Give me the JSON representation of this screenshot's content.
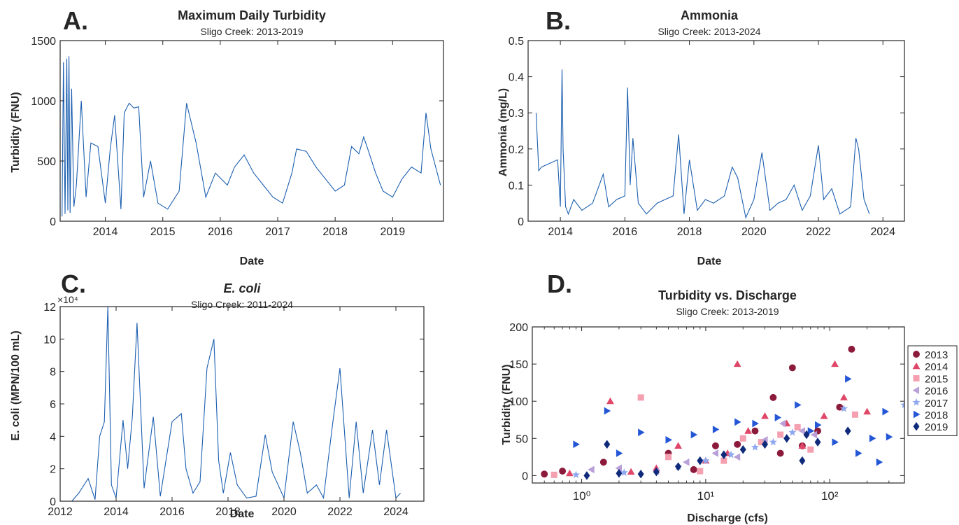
{
  "colors": {
    "line": "#1c5fb0",
    "axis": "#262626",
    "years": {
      "2013": "#8b1a3b",
      "2014": "#e04668",
      "2015": "#f4a0b0",
      "2016": "#b9a0d8",
      "2017": "#8fa8f0",
      "2018": "#2457d6",
      "2019": "#0f2a7a"
    }
  },
  "chart_data": [
    {
      "id": "A",
      "type": "line",
      "panel_label": "A.",
      "title": "Maximum Daily Turbidity",
      "subtitle": "Sligo Creek: 2013-2019",
      "xlabel": "Date",
      "ylabel": "Turbidity (FNU)",
      "xlim": [
        "2013-03-20",
        "2019-11-20"
      ],
      "ylim": [
        0,
        1500
      ],
      "xticks": [
        "2014",
        "2015",
        "2016",
        "2017",
        "2018",
        "2019"
      ],
      "yticks": [
        "0",
        "500",
        "1000",
        "1500"
      ],
      "yticks_values": [
        0,
        500,
        1000,
        1500
      ],
      "x": [
        "2013-04-01",
        "2013-04-10",
        "2013-04-20",
        "2013-05-01",
        "2013-05-08",
        "2013-05-15",
        "2013-05-22",
        "2013-06-01",
        "2013-06-15",
        "2013-07-01",
        "2013-08-01",
        "2013-09-01",
        "2013-10-01",
        "2013-11-15",
        "2014-01-01",
        "2014-02-01",
        "2014-03-01",
        "2014-04-10",
        "2014-05-01",
        "2014-06-01",
        "2014-07-01",
        "2014-08-01",
        "2014-09-01",
        "2014-10-15",
        "2014-12-01",
        "2015-02-01",
        "2015-04-15",
        "2015-06-01",
        "2015-08-01",
        "2015-10-01",
        "2015-12-01",
        "2016-02-15",
        "2016-04-01",
        "2016-06-01",
        "2016-08-01",
        "2016-10-01",
        "2016-12-01",
        "2017-02-01",
        "2017-04-01",
        "2017-05-01",
        "2017-07-01",
        "2017-09-01",
        "2017-11-01",
        "2018-01-01",
        "2018-03-01",
        "2018-04-15",
        "2018-06-01",
        "2018-07-01",
        "2018-08-01",
        "2018-09-15",
        "2018-11-01",
        "2019-01-01",
        "2019-03-01",
        "2019-05-01",
        "2019-07-01",
        "2019-08-01",
        "2019-09-01",
        "2019-11-01"
      ],
      "y": [
        40,
        1320,
        60,
        1350,
        90,
        1370,
        70,
        1100,
        120,
        300,
        1000,
        200,
        650,
        620,
        150,
        600,
        880,
        100,
        900,
        980,
        940,
        950,
        200,
        500,
        150,
        100,
        250,
        980,
        650,
        200,
        400,
        300,
        450,
        550,
        400,
        300,
        200,
        150,
        400,
        600,
        580,
        450,
        350,
        250,
        300,
        620,
        560,
        700,
        580,
        400,
        250,
        200,
        350,
        450,
        400,
        900,
        600,
        300
      ]
    },
    {
      "id": "B",
      "type": "line",
      "panel_label": "B.",
      "title": "Ammonia",
      "subtitle": "Sligo Creek: 2013-2024",
      "xlabel": "Date",
      "ylabel": "Ammonia (mg/L)",
      "xlim": [
        "2013-01-01",
        "2024-09-01"
      ],
      "ylim": [
        0,
        0.5
      ],
      "xticks": [
        "2014",
        "2016",
        "2018",
        "2020",
        "2022",
        "2024"
      ],
      "yticks": [
        "0",
        "0.1",
        "0.2",
        "0.3",
        "0.4",
        "0.5"
      ],
      "yticks_values": [
        0,
        0.1,
        0.2,
        0.3,
        0.4,
        0.5
      ],
      "x": [
        "2013-04-01",
        "2013-05-01",
        "2013-06-01",
        "2013-12-01",
        "2014-01-01",
        "2014-01-20",
        "2014-02-01",
        "2014-03-01",
        "2014-04-01",
        "2014-06-01",
        "2014-09-01",
        "2015-01-01",
        "2015-05-01",
        "2015-07-01",
        "2015-10-01",
        "2016-01-01",
        "2016-02-01",
        "2016-03-01",
        "2016-04-01",
        "2016-06-01",
        "2016-09-01",
        "2017-01-01",
        "2017-04-01",
        "2017-07-01",
        "2017-09-01",
        "2017-11-01",
        "2018-01-01",
        "2018-04-01",
        "2018-07-01",
        "2018-10-01",
        "2019-02-01",
        "2019-05-01",
        "2019-07-01",
        "2019-10-01",
        "2020-01-01",
        "2020-04-01",
        "2020-07-01",
        "2020-10-01",
        "2021-01-01",
        "2021-04-01",
        "2021-07-01",
        "2021-10-01",
        "2022-01-01",
        "2022-03-01",
        "2022-06-01",
        "2022-09-01",
        "2023-01-01",
        "2023-03-01",
        "2023-04-01",
        "2023-06-01",
        "2023-08-01"
      ],
      "y": [
        0.3,
        0.14,
        0.15,
        0.17,
        0.04,
        0.42,
        0.2,
        0.04,
        0.02,
        0.06,
        0.03,
        0.05,
        0.13,
        0.04,
        0.06,
        0.07,
        0.37,
        0.1,
        0.23,
        0.05,
        0.02,
        0.05,
        0.06,
        0.07,
        0.24,
        0.02,
        0.17,
        0.03,
        0.06,
        0.05,
        0.07,
        0.15,
        0.12,
        0.01,
        0.06,
        0.19,
        0.03,
        0.05,
        0.06,
        0.1,
        0.03,
        0.07,
        0.21,
        0.06,
        0.09,
        0.02,
        0.04,
        0.23,
        0.2,
        0.06,
        0.02
      ]
    },
    {
      "id": "C",
      "type": "line",
      "panel_label": "C.",
      "title": "E. coli",
      "subtitle": "Sligo Creek: 2011-2024",
      "xlabel": "Date",
      "ylabel": "E. coli (MPN/100 mL)",
      "y_exponent_label": "×10⁴",
      "xlim": [
        "2012-01-01",
        "2025-01-01"
      ],
      "ylim": [
        0,
        120000
      ],
      "xticks": [
        "2012",
        "2014",
        "2016",
        "2018",
        "2020",
        "2022",
        "2024"
      ],
      "yticks": [
        "0",
        "2",
        "4",
        "6",
        "8",
        "10",
        "12"
      ],
      "yticks_values": [
        0,
        20000,
        40000,
        60000,
        80000,
        100000,
        120000
      ],
      "x": [
        "2012-06-01",
        "2012-09-01",
        "2013-01-01",
        "2013-04-01",
        "2013-06-01",
        "2013-08-01",
        "2013-09-15",
        "2013-11-01",
        "2014-01-01",
        "2014-04-01",
        "2014-06-01",
        "2014-08-01",
        "2014-10-01",
        "2015-01-01",
        "2015-05-01",
        "2015-08-01",
        "2016-01-01",
        "2016-05-01",
        "2016-07-01",
        "2016-10-01",
        "2017-01-01",
        "2017-04-01",
        "2017-07-01",
        "2017-09-01",
        "2017-11-01",
        "2018-02-01",
        "2018-05-01",
        "2018-09-01",
        "2019-01-01",
        "2019-05-01",
        "2019-08-01",
        "2020-01-01",
        "2020-05-01",
        "2020-08-01",
        "2020-11-01",
        "2021-03-01",
        "2021-06-01",
        "2021-10-01",
        "2022-01-01",
        "2022-05-01",
        "2022-08-01",
        "2022-11-01",
        "2023-03-01",
        "2023-06-01",
        "2023-09-01",
        "2024-01-01",
        "2024-03-01"
      ],
      "y": [
        0,
        5000,
        14000,
        1000,
        40000,
        49000,
        120000,
        10000,
        2000,
        50000,
        20000,
        52000,
        110000,
        8000,
        52000,
        3000,
        49000,
        54000,
        20000,
        5000,
        12000,
        82000,
        100000,
        25000,
        5000,
        30000,
        10000,
        2000,
        3000,
        41000,
        18000,
        2000,
        49000,
        30000,
        5000,
        10000,
        2000,
        49000,
        82000,
        2000,
        49000,
        5000,
        44000,
        10000,
        44000,
        2000,
        5000
      ]
    },
    {
      "id": "D",
      "type": "scatter",
      "panel_label": "D.",
      "title": "Turbidity vs. Discharge",
      "subtitle": "Sligo Creek: 2013-2019",
      "xlabel": "Discharge (cfs)",
      "ylabel": "Turbidity (FNU)",
      "xscale": "log",
      "xlim": [
        0.4,
        400
      ],
      "ylim": [
        -10,
        200
      ],
      "xticks": [
        "10⁰",
        "10¹",
        "10²"
      ],
      "xticks_values": [
        1,
        10,
        100
      ],
      "yticks": [
        "0",
        "50",
        "100",
        "150",
        "200"
      ],
      "yticks_values": [
        0,
        50,
        100,
        150,
        200
      ],
      "legend": "right",
      "series": [
        {
          "name": "2013",
          "marker": "circle",
          "points": [
            [
              0.5,
              2
            ],
            [
              0.7,
              6
            ],
            [
              1.5,
              18
            ],
            [
              5,
              30
            ],
            [
              8,
              8
            ],
            [
              12,
              40
            ],
            [
              18,
              42
            ],
            [
              25,
              60
            ],
            [
              35,
              105
            ],
            [
              50,
              145
            ],
            [
              60,
              40
            ],
            [
              120,
              92
            ],
            [
              150,
              170
            ],
            [
              40,
              30
            ],
            [
              80,
              60
            ]
          ]
        },
        {
          "name": "2014",
          "marker": "triangle",
          "points": [
            [
              1.7,
              100
            ],
            [
              0.8,
              3
            ],
            [
              2.5,
              5
            ],
            [
              4,
              10
            ],
            [
              6,
              40
            ],
            [
              10,
              20
            ],
            [
              15,
              30
            ],
            [
              18,
              150
            ],
            [
              22,
              60
            ],
            [
              30,
              80
            ],
            [
              45,
              70
            ],
            [
              60,
              40
            ],
            [
              110,
              150
            ],
            [
              130,
              105
            ],
            [
              200,
              86
            ],
            [
              90,
              80
            ]
          ]
        },
        {
          "name": "2015",
          "marker": "square",
          "points": [
            [
              0.6,
              1
            ],
            [
              3,
              105
            ],
            [
              5,
              25
            ],
            [
              9,
              6
            ],
            [
              14,
              20
            ],
            [
              20,
              50
            ],
            [
              28,
              45
            ],
            [
              40,
              55
            ],
            [
              55,
              65
            ],
            [
              70,
              35
            ],
            [
              160,
              82
            ]
          ]
        },
        {
          "name": "2016",
          "marker": "tri-left",
          "points": [
            [
              1.2,
              8
            ],
            [
              2,
              10
            ],
            [
              4,
              6
            ],
            [
              7,
              18
            ],
            [
              12,
              30
            ],
            [
              18,
              25
            ],
            [
              30,
              48
            ],
            [
              42,
              70
            ],
            [
              60,
              60
            ],
            [
              75,
              55
            ]
          ]
        },
        {
          "name": "2017",
          "marker": "star",
          "points": [
            [
              0.9,
              1
            ],
            [
              2.2,
              4
            ],
            [
              6,
              12
            ],
            [
              10,
              20
            ],
            [
              16,
              28
            ],
            [
              25,
              38
            ],
            [
              35,
              45
            ],
            [
              50,
              58
            ],
            [
              130,
              90
            ],
            [
              400,
              95
            ]
          ]
        },
        {
          "name": "2018",
          "marker": "tri-right",
          "points": [
            [
              0.9,
              42
            ],
            [
              1.6,
              87
            ],
            [
              2,
              30
            ],
            [
              3,
              58
            ],
            [
              5,
              48
            ],
            [
              8,
              55
            ],
            [
              12,
              62
            ],
            [
              18,
              72
            ],
            [
              25,
              70
            ],
            [
              38,
              78
            ],
            [
              55,
              95
            ],
            [
              70,
              60
            ],
            [
              80,
              68
            ],
            [
              110,
              45
            ],
            [
              140,
              130
            ],
            [
              170,
              30
            ],
            [
              220,
              50
            ],
            [
              280,
              86
            ],
            [
              300,
              52
            ],
            [
              250,
              18
            ]
          ]
        },
        {
          "name": "2019",
          "marker": "diamond",
          "points": [
            [
              1.6,
              42
            ],
            [
              1.1,
              0
            ],
            [
              2,
              3
            ],
            [
              3,
              2
            ],
            [
              4,
              5
            ],
            [
              6,
              12
            ],
            [
              9,
              20
            ],
            [
              14,
              28
            ],
            [
              20,
              35
            ],
            [
              30,
              42
            ],
            [
              45,
              50
            ],
            [
              65,
              55
            ],
            [
              80,
              45
            ],
            [
              140,
              60
            ],
            [
              60,
              20
            ]
          ]
        }
      ]
    }
  ]
}
